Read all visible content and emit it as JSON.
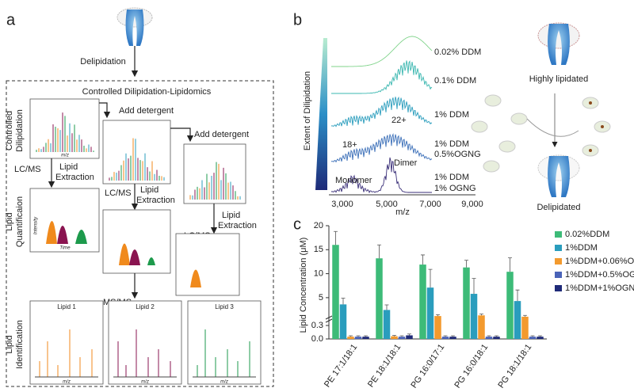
{
  "panel_a": {
    "label": "a",
    "delipidation": "Delipidation",
    "box_title": "Controlled Dilipidation-Lipidomics",
    "controlled": [
      "Controlled",
      "Dilipidation"
    ],
    "add_detergent": [
      "Add detergent",
      "Add detergent"
    ],
    "lcms": [
      "LC/MS",
      "LC/MS",
      "LC/MS"
    ],
    "lipid_extraction": [
      [
        "Lipid",
        "Extraction"
      ],
      [
        "Lipid",
        "Extraction"
      ],
      [
        "Lipid",
        "Extraction"
      ]
    ],
    "quantification": [
      "Lipid",
      "Quantificaion"
    ],
    "intensity": "Intensity",
    "time": "Time",
    "mz": "m/z",
    "msms": "MS/MS",
    "lipids": [
      "Lipid 1",
      "Lipid 2",
      "Lipid 3"
    ],
    "identification": [
      "Lipid",
      "Identification"
    ]
  },
  "panel_b": {
    "label": "b",
    "extent": "Extent of Dilipidation",
    "conditions": [
      [
        "0.02% DDM"
      ],
      [
        "0.1% DDM"
      ],
      [
        "1% DDM"
      ],
      [
        "1% DDM",
        "0.5%OGNG"
      ],
      [
        "1% DDM",
        "1% OGNG"
      ]
    ],
    "charge_22": "22+",
    "charge_18": "18+",
    "dimer": "Dimer",
    "monomer": "Monomer",
    "xtick_labels": [
      "3,000",
      "5,000",
      "7,000",
      "9,000"
    ],
    "xlabel": "m/z",
    "highly": "Highly lipidated",
    "delipidated": "Delipidated"
  },
  "chart_data": {
    "type": "bar",
    "label": "c",
    "y_label": "Lipid Concentration (μM)",
    "categories": [
      "PE 17:1/18:1",
      "PE 18:1/18:1",
      "PG 16:0/17:1",
      "PG 16:0/18:1",
      "PG 18:1/18:1"
    ],
    "series": [
      {
        "name": "0.02%DDM",
        "color": "#3dbb78",
        "values": [
          16,
          13.2,
          11.9,
          11.3,
          10.4
        ],
        "errors": [
          2.8,
          2.8,
          2,
          1.5,
          2.9
        ]
      },
      {
        "name": "1%DDM",
        "color": "#2a9dbd",
        "values": [
          3.6,
          2.6,
          7.1,
          5.8,
          4.3
        ],
        "errors": [
          1.3,
          0.9,
          3.8,
          3.2,
          2.3
        ]
      },
      {
        "name": "1%DDM+0.06%OGNG",
        "color": "#f39a2e",
        "values": [
          0.05,
          0.06,
          1.7,
          1.8,
          1.6
        ],
        "errors": [
          0.02,
          0.02,
          0.2,
          0.2,
          0.2
        ]
      },
      {
        "name": "1%DDM+0.5%OGNG",
        "color": "#4a63b8",
        "values": [
          0.05,
          0.05,
          0.05,
          0.05,
          0.05
        ],
        "errors": [
          0.02,
          0.02,
          0.02,
          0.02,
          0.02
        ]
      },
      {
        "name": "1%DDM+1%OGNG",
        "color": "#1f2a78",
        "values": [
          0.05,
          0.08,
          0.05,
          0.05,
          0.05
        ],
        "errors": [
          0.02,
          0.03,
          0.02,
          0.02,
          0.02
        ]
      }
    ],
    "ylim": [
      0,
      20
    ],
    "ybreak": [
      0.3,
      3
    ],
    "yticks": [
      {
        "value": 0,
        "label": "0.0"
      },
      0.3,
      5,
      10,
      15,
      20
    ],
    "grid": false
  }
}
